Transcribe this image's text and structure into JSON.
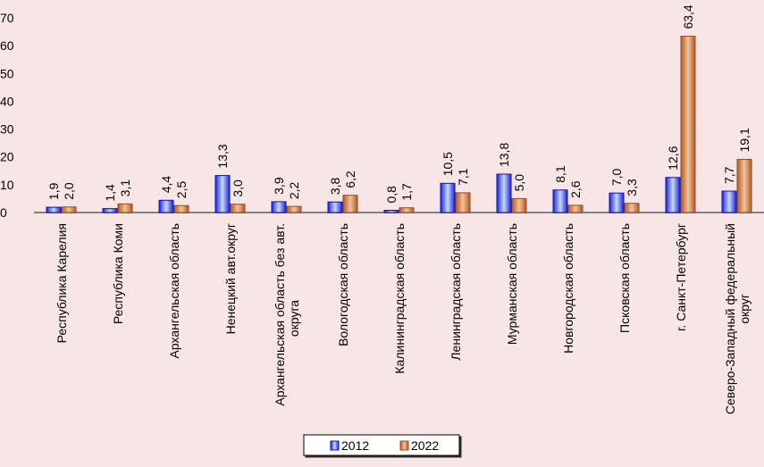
{
  "chart_data": {
    "type": "bar",
    "title": "",
    "xlabel": "",
    "ylabel": "",
    "ylim": [
      0,
      70
    ],
    "yticks": [
      "0",
      "10",
      "20",
      "30",
      "40",
      "50",
      "60",
      "70"
    ],
    "grid": false,
    "legend_placement": "bottom",
    "categories": [
      [
        "Республика Карелия"
      ],
      [
        "Республика Коми"
      ],
      [
        "Архангельская область"
      ],
      [
        "Ненецкий авт.округ"
      ],
      [
        "Архангельская область без авт.",
        "округа"
      ],
      [
        "Вологодская область"
      ],
      [
        "Калининградская область"
      ],
      [
        "Ленинградская область"
      ],
      [
        "Мурманская область"
      ],
      [
        "Новгородская область"
      ],
      [
        "Псковская область"
      ],
      [
        "г. Санкт-Петербург"
      ],
      [
        "Северо-Западный федеральный",
        "округ"
      ]
    ],
    "series": [
      {
        "name": "2012",
        "color": "#3344ee",
        "values": [
          1.9,
          1.4,
          4.4,
          13.3,
          3.9,
          3.8,
          0.8,
          10.5,
          13.8,
          8.1,
          7.0,
          12.6,
          7.7
        ],
        "labels": [
          "1,9",
          "1,4",
          "4,4",
          "13,3",
          "3,9",
          "3,8",
          "0,8",
          "10,5",
          "13,8",
          "8,1",
          "7,0",
          "12,6",
          "7,7"
        ]
      },
      {
        "name": "2022",
        "color": "#c8703a",
        "values": [
          2.0,
          3.1,
          2.5,
          3.0,
          2.2,
          6.2,
          1.7,
          7.1,
          5.0,
          2.6,
          3.3,
          63.4,
          19.1
        ],
        "labels": [
          "2,0",
          "3,1",
          "2,5",
          "3,0",
          "2,2",
          "6,2",
          "1,7",
          "7,1",
          "5,0",
          "2,6",
          "3,3",
          "63,4",
          "19,1"
        ]
      }
    ]
  }
}
